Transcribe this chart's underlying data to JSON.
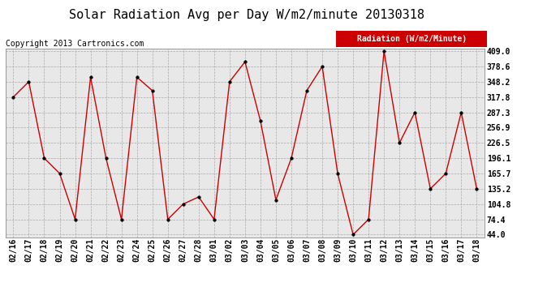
{
  "title": "Solar Radiation Avg per Day W/m2/minute 20130318",
  "copyright": "Copyright 2013 Cartronics.com",
  "legend_label": "Radiation (W/m2/Minute)",
  "dates": [
    "02/16",
    "02/17",
    "02/18",
    "02/19",
    "02/20",
    "02/21",
    "02/22",
    "02/23",
    "02/24",
    "02/25",
    "02/26",
    "02/27",
    "02/28",
    "03/01",
    "03/02",
    "03/03",
    "03/04",
    "03/05",
    "03/06",
    "03/07",
    "03/08",
    "03/09",
    "03/10",
    "03/11",
    "03/12",
    "03/13",
    "03/14",
    "03/15",
    "03/16",
    "03/17",
    "03/18"
  ],
  "values": [
    317.8,
    348.2,
    196.1,
    165.7,
    74.4,
    357.4,
    196.1,
    74.4,
    357.4,
    330.5,
    74.4,
    104.8,
    119.0,
    74.4,
    348.2,
    387.8,
    270.1,
    113.0,
    196.1,
    330.5,
    378.6,
    165.7,
    44.0,
    74.4,
    409.0,
    226.5,
    287.3,
    135.2,
    165.7,
    287.3,
    135.2
  ],
  "ymin": 44.0,
  "ymax": 409.0,
  "yticks": [
    44.0,
    74.4,
    104.8,
    135.2,
    165.7,
    196.1,
    226.5,
    256.9,
    287.3,
    317.8,
    348.2,
    378.6,
    409.0
  ],
  "line_color": "#cc0000",
  "marker_color": "#000000",
  "legend_bg": "#cc0000",
  "legend_text_color": "#ffffff",
  "grid_color": "#aaaaaa",
  "bg_color": "#ffffff",
  "plot_bg_color": "#e8e8e8",
  "title_fontsize": 11,
  "tick_fontsize": 7,
  "copyright_fontsize": 7
}
